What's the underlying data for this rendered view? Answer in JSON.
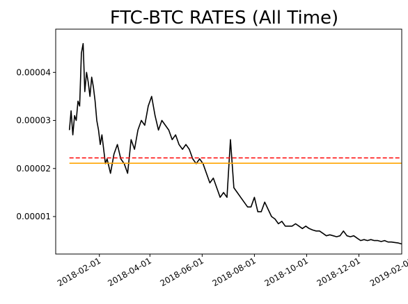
{
  "chart_data": {
    "type": "line",
    "title": "FTC-BTC RATES (All Time)",
    "xlabel": "",
    "ylabel": "",
    "x_range": [
      "2017-12-12",
      "2019-01-20"
    ],
    "ylim": [
      2.2e-06,
      4.9e-05
    ],
    "x_ticks": [
      {
        "date": "2018-02-01",
        "label": "2018-02-01"
      },
      {
        "date": "2018-04-01",
        "label": "2018-04-01"
      },
      {
        "date": "2018-06-01",
        "label": "2018-06-01"
      },
      {
        "date": "2018-08-01",
        "label": "2018-08-01"
      },
      {
        "date": "2018-10-01",
        "label": "2018-10-01"
      },
      {
        "date": "2018-12-01",
        "label": "2018-12-01"
      },
      {
        "date": "2019-02-01",
        "label": "2019-02-01"
      }
    ],
    "y_ticks": [
      {
        "value": 1e-05,
        "label": "0.00001"
      },
      {
        "value": 2e-05,
        "label": "0.00002"
      },
      {
        "value": 3e-05,
        "label": "0.00003"
      },
      {
        "value": 4e-05,
        "label": "0.00004"
      }
    ],
    "grid": false,
    "series": [
      {
        "color": "#000000",
        "style": "solid",
        "x": [
          "2017-12-28",
          "2017-12-30",
          "2018-01-01",
          "2018-01-03",
          "2018-01-05",
          "2018-01-07",
          "2018-01-09",
          "2018-01-11",
          "2018-01-13",
          "2018-01-15",
          "2018-01-17",
          "2018-01-19",
          "2018-01-21",
          "2018-01-23",
          "2018-01-25",
          "2018-01-27",
          "2018-01-29",
          "2018-01-31",
          "2018-02-02",
          "2018-02-04",
          "2018-02-06",
          "2018-02-08",
          "2018-02-10",
          "2018-02-14",
          "2018-02-18",
          "2018-02-22",
          "2018-02-26",
          "2018-03-02",
          "2018-03-06",
          "2018-03-10",
          "2018-03-14",
          "2018-03-18",
          "2018-03-22",
          "2018-03-26",
          "2018-03-30",
          "2018-04-03",
          "2018-04-07",
          "2018-04-11",
          "2018-04-15",
          "2018-04-19",
          "2018-04-23",
          "2018-04-27",
          "2018-05-01",
          "2018-05-05",
          "2018-05-09",
          "2018-05-13",
          "2018-05-17",
          "2018-05-21",
          "2018-05-25",
          "2018-05-29",
          "2018-06-02",
          "2018-06-06",
          "2018-06-10",
          "2018-06-14",
          "2018-06-18",
          "2018-06-22",
          "2018-06-26",
          "2018-06-30",
          "2018-07-04",
          "2018-07-08",
          "2018-07-12",
          "2018-07-16",
          "2018-07-20",
          "2018-07-24",
          "2018-07-28",
          "2018-08-01",
          "2018-08-05",
          "2018-08-09",
          "2018-08-13",
          "2018-08-17",
          "2018-08-21",
          "2018-08-25",
          "2018-08-29",
          "2018-09-02",
          "2018-09-06",
          "2018-09-10",
          "2018-09-14",
          "2018-09-18",
          "2018-09-22",
          "2018-09-26",
          "2018-09-30",
          "2018-10-04",
          "2018-10-08",
          "2018-10-12",
          "2018-10-16",
          "2018-10-20",
          "2018-10-24",
          "2018-10-28",
          "2018-11-01",
          "2018-11-05",
          "2018-11-09",
          "2018-11-13",
          "2018-11-17",
          "2018-11-21",
          "2018-11-25",
          "2018-11-29",
          "2018-12-03",
          "2018-12-07",
          "2018-12-11",
          "2018-12-15",
          "2018-12-19",
          "2018-12-23",
          "2018-12-27",
          "2018-12-31",
          "2019-01-04",
          "2019-01-08",
          "2019-01-12",
          "2019-01-16",
          "2019-01-20"
        ],
        "y": [
          2.8e-05,
          3.2e-05,
          2.7e-05,
          3.1e-05,
          3e-05,
          3.4e-05,
          3.3e-05,
          4.4e-05,
          4.6e-05,
          3.6e-05,
          4e-05,
          3.8e-05,
          3.5e-05,
          3.9e-05,
          3.7e-05,
          3.4e-05,
          3e-05,
          2.8e-05,
          2.5e-05,
          2.7e-05,
          2.4e-05,
          2.1e-05,
          2.2e-05,
          1.9e-05,
          2.3e-05,
          2.5e-05,
          2.2e-05,
          2.1e-05,
          1.9e-05,
          2.6e-05,
          2.4e-05,
          2.8e-05,
          3e-05,
          2.9e-05,
          3.3e-05,
          3.5e-05,
          3.1e-05,
          2.8e-05,
          3e-05,
          2.9e-05,
          2.8e-05,
          2.6e-05,
          2.7e-05,
          2.5e-05,
          2.4e-05,
          2.5e-05,
          2.4e-05,
          2.2e-05,
          2.1e-05,
          2.2e-05,
          2.1e-05,
          1.9e-05,
          1.7e-05,
          1.8e-05,
          1.6e-05,
          1.4e-05,
          1.5e-05,
          1.4e-05,
          2.6e-05,
          1.6e-05,
          1.5e-05,
          1.4e-05,
          1.3e-05,
          1.2e-05,
          1.2e-05,
          1.4e-05,
          1.1e-05,
          1.1e-05,
          1.3e-05,
          1.15e-05,
          1e-05,
          9.5e-06,
          8.5e-06,
          9e-06,
          8e-06,
          8e-06,
          8e-06,
          8.5e-06,
          8e-06,
          7.5e-06,
          8e-06,
          7.5e-06,
          7.2e-06,
          7e-06,
          7e-06,
          6.5e-06,
          6e-06,
          6.2e-06,
          6e-06,
          5.8e-06,
          6e-06,
          7e-06,
          6e-06,
          5.8e-06,
          6e-06,
          5.5e-06,
          5e-06,
          5.2e-06,
          5e-06,
          5.2e-06,
          5e-06,
          5e-06,
          4.8e-06,
          5e-06,
          4.7e-06,
          4.7e-06,
          4.6e-06,
          4.5e-06,
          4.3e-06
        ]
      },
      {
        "color": "#ff0000",
        "style": "dashed",
        "x": [
          "2017-12-28",
          "2019-01-20"
        ],
        "y": [
          2.22e-05,
          2.22e-05
        ]
      },
      {
        "color": "#ffa500",
        "style": "solid",
        "x": [
          "2017-12-28",
          "2019-01-20"
        ],
        "y": [
          2.11e-05,
          2.11e-05
        ]
      }
    ]
  }
}
